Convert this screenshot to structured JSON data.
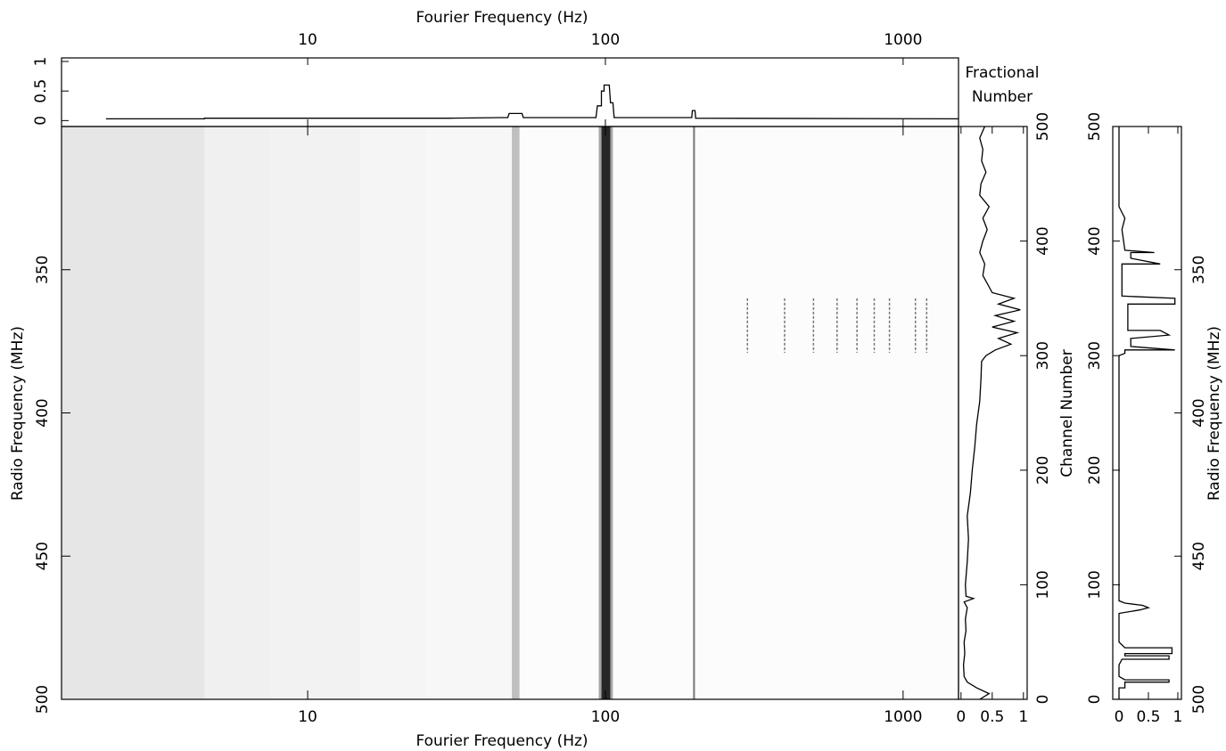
{
  "chart_data": [
    {
      "type": "line",
      "xlabel": "Fourier Frequency (Hz)",
      "ylabel_lines": [
        "Fractional",
        "Number"
      ],
      "log_x": true,
      "x": [
        2.1,
        4.5,
        4.5,
        30,
        45,
        47,
        47.5,
        52.5,
        53,
        93,
        94,
        97,
        97,
        99,
        99,
        103,
        104,
        106,
        107,
        195,
        196,
        200,
        201,
        1535
      ],
      "values": [
        0.03,
        0.03,
        0.04,
        0.04,
        0.05,
        0.05,
        0.12,
        0.12,
        0.05,
        0.05,
        0.25,
        0.25,
        0.5,
        0.5,
        0.6,
        0.6,
        0.3,
        0.3,
        0.05,
        0.05,
        0.17,
        0.17,
        0.04,
        0.03
      ],
      "xlim": [
        1.49,
        1535
      ],
      "xticks": [
        10,
        100,
        1000
      ],
      "ylim": [
        -0.1,
        1.06
      ],
      "yticks": [
        0,
        0.5,
        1
      ]
    },
    {
      "type": "heatmap",
      "xlabel": "Fourier Frequency (Hz)",
      "ylabel": "Radio Frequency (MHz)",
      "log_x": true,
      "x_bins": [
        1.49,
        4.5,
        7.5,
        15,
        25,
        48.5,
        51.5,
        95,
        97,
        104,
        106,
        197,
        200,
        1535
      ],
      "values": [
        0.1,
        0.06,
        0.05,
        0.04,
        0.03,
        0.25,
        0.01,
        0.35,
        0.85,
        0.35,
        0.01,
        0.5,
        0.01
      ],
      "rfi_band": [
        360,
        379
      ],
      "harmonics": [
        300,
        400,
        500,
        600,
        700,
        800,
        900,
        1100,
        1200
      ],
      "xlim": [
        1.49,
        1535
      ],
      "xticks": [
        10,
        100,
        1000
      ],
      "ylim": [
        500,
        300
      ],
      "yticks": [
        350,
        400,
        450,
        500
      ]
    },
    {
      "type": "line",
      "value_axis": "horizontal",
      "xlabel": "Channel Number",
      "x": [
        0,
        5,
        10,
        15,
        20,
        30,
        40,
        50,
        60,
        70,
        80,
        85,
        88,
        90,
        100,
        120,
        140,
        160,
        180,
        200,
        220,
        240,
        260,
        280,
        295,
        300,
        305,
        310,
        315,
        320,
        325,
        330,
        335,
        340,
        345,
        350,
        355,
        360,
        370,
        380,
        390,
        400,
        410,
        420,
        430,
        440,
        450,
        460,
        470,
        480,
        490,
        500
      ],
      "values": [
        0.3,
        0.45,
        0.25,
        0.1,
        0.05,
        0.04,
        0.06,
        0.05,
        0.08,
        0.07,
        0.1,
        0.05,
        0.2,
        0.08,
        0.07,
        0.1,
        0.12,
        0.1,
        0.15,
        0.18,
        0.22,
        0.25,
        0.3,
        0.32,
        0.33,
        0.4,
        0.55,
        0.8,
        0.6,
        0.9,
        0.5,
        0.85,
        0.55,
        0.95,
        0.6,
        0.85,
        0.5,
        0.45,
        0.35,
        0.38,
        0.3,
        0.35,
        0.42,
        0.35,
        0.45,
        0.3,
        0.32,
        0.4,
        0.33,
        0.35,
        0.3,
        0.38
      ],
      "xlim": [
        0,
        500
      ],
      "xticks": [
        0,
        100,
        200,
        300,
        400,
        500
      ],
      "ylim": [
        -0.04,
        1.06
      ],
      "yticks": [
        0,
        0.5,
        1
      ]
    },
    {
      "type": "line",
      "value_axis": "horizontal",
      "x2label": "Radio Frequency (MHz)",
      "x": [
        0,
        10,
        10,
        15,
        15,
        17,
        17,
        20,
        30,
        35,
        35,
        38,
        38,
        40,
        40,
        45,
        45,
        50,
        75,
        78,
        80,
        82,
        84,
        86,
        300,
        302,
        305,
        305,
        308,
        315,
        318,
        322,
        322,
        328,
        340,
        345,
        345,
        350,
        352,
        375,
        380,
        380,
        385,
        390,
        390,
        392,
        410,
        420,
        425,
        430,
        500
      ],
      "values": [
        0,
        0,
        0.1,
        0.1,
        0.85,
        0.85,
        0.1,
        0,
        0,
        0.05,
        0.85,
        0.85,
        0.1,
        0.1,
        0.9,
        0.9,
        0.1,
        0,
        0,
        0.35,
        0.5,
        0.4,
        0.1,
        0,
        0,
        0.1,
        0.1,
        0.95,
        0.2,
        0.2,
        0.85,
        0.7,
        0.15,
        0.15,
        0.15,
        0.15,
        0.95,
        0.95,
        0.05,
        0.05,
        0.05,
        0.7,
        0.2,
        0.2,
        0.6,
        0.1,
        0.05,
        0.1,
        0.05,
        0,
        0
      ],
      "xlim": [
        0,
        500
      ],
      "xticks": [
        0,
        100,
        200,
        300,
        400,
        500
      ],
      "x2lim": [
        500,
        300
      ],
      "x2ticks": [
        350,
        400,
        450,
        500
      ],
      "ylim": [
        -0.106,
        1.061
      ],
      "yticks": [
        0,
        0.5,
        1
      ]
    }
  ]
}
